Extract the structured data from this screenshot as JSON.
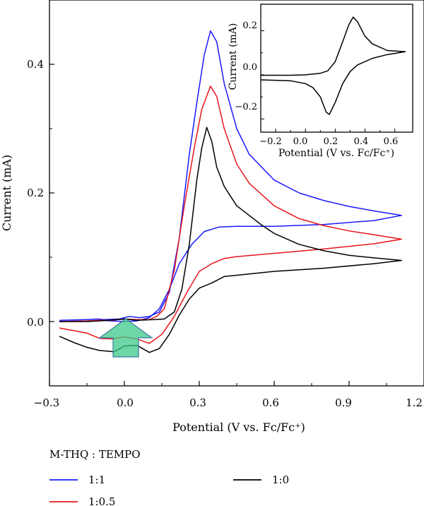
{
  "chart_data": [
    {
      "type": "line",
      "xlabel": "Potential (V vs. Fc/Fc⁺)",
      "ylabel": "Current (mA)",
      "xlim": [
        -0.3,
        1.2
      ],
      "ylim": [
        -0.1,
        0.5
      ],
      "xticks": [
        "−0.3",
        "0.0",
        "0.3",
        "0.6",
        "0.9",
        "1.2"
      ],
      "yticks": [
        "0.0",
        "0.2",
        "0.4"
      ],
      "legend_title": "M-THQ : TEMPO",
      "legend_position": "bottom",
      "series": [
        {
          "name": "1:1",
          "color": "#1a1aff",
          "forward": [
            [
              -0.26,
              0.002
            ],
            [
              -0.15,
              0.003
            ],
            [
              -0.11,
              0.004
            ],
            [
              -0.08,
              0.003
            ],
            [
              -0.02,
              0.004
            ],
            [
              0.02,
              0.008
            ],
            [
              0.06,
              0.006
            ],
            [
              0.1,
              0.008
            ],
            [
              0.14,
              0.015
            ],
            [
              0.18,
              0.045
            ],
            [
              0.22,
              0.13
            ],
            [
              0.26,
              0.26
            ],
            [
              0.29,
              0.34
            ],
            [
              0.32,
              0.415
            ],
            [
              0.345,
              0.452
            ],
            [
              0.37,
              0.435
            ],
            [
              0.4,
              0.37
            ],
            [
              0.45,
              0.3
            ],
            [
              0.5,
              0.26
            ],
            [
              0.6,
              0.22
            ],
            [
              0.7,
              0.2
            ],
            [
              0.8,
              0.188
            ],
            [
              0.9,
              0.179
            ],
            [
              1.0,
              0.172
            ],
            [
              1.11,
              0.165
            ]
          ],
          "reverse": [
            [
              1.11,
              0.165
            ],
            [
              1.0,
              0.157
            ],
            [
              0.8,
              0.151
            ],
            [
              0.6,
              0.148
            ],
            [
              0.45,
              0.148
            ],
            [
              0.38,
              0.147
            ],
            [
              0.32,
              0.14
            ],
            [
              0.27,
              0.12
            ],
            [
              0.22,
              0.09
            ],
            [
              0.18,
              0.05
            ],
            [
              0.14,
              0.02
            ],
            [
              0.1,
              0.006
            ],
            [
              0.05,
              0.001
            ],
            [
              0.0,
              0.0
            ],
            [
              -0.05,
              0.001
            ],
            [
              -0.1,
              0.002
            ],
            [
              -0.15,
              0.001
            ],
            [
              -0.26,
              0.0
            ]
          ]
        },
        {
          "name": "1:0.5",
          "color": "#e8161b",
          "forward": [
            [
              -0.26,
              0.0
            ],
            [
              -0.15,
              0.001
            ],
            [
              -0.1,
              0.002
            ],
            [
              -0.05,
              0.002
            ],
            [
              0.0,
              0.004
            ],
            [
              0.05,
              0.003
            ],
            [
              0.1,
              0.003
            ],
            [
              0.13,
              0.008
            ],
            [
              0.16,
              0.02
            ],
            [
              0.2,
              0.08
            ],
            [
              0.24,
              0.18
            ],
            [
              0.28,
              0.27
            ],
            [
              0.31,
              0.33
            ],
            [
              0.345,
              0.366
            ],
            [
              0.37,
              0.35
            ],
            [
              0.4,
              0.3
            ],
            [
              0.45,
              0.245
            ],
            [
              0.5,
              0.215
            ],
            [
              0.6,
              0.18
            ],
            [
              0.7,
              0.16
            ],
            [
              0.8,
              0.149
            ],
            [
              0.9,
              0.141
            ],
            [
              1.0,
              0.135
            ],
            [
              1.11,
              0.128
            ]
          ],
          "reverse": [
            [
              1.11,
              0.128
            ],
            [
              1.0,
              0.121
            ],
            [
              0.8,
              0.113
            ],
            [
              0.6,
              0.106
            ],
            [
              0.45,
              0.101
            ],
            [
              0.4,
              0.098
            ],
            [
              0.35,
              0.09
            ],
            [
              0.3,
              0.078
            ],
            [
              0.25,
              0.045
            ],
            [
              0.2,
              0.008
            ],
            [
              0.15,
              -0.02
            ],
            [
              0.1,
              -0.034
            ],
            [
              0.05,
              -0.027
            ],
            [
              0.0,
              -0.024
            ],
            [
              -0.05,
              -0.027
            ],
            [
              -0.1,
              -0.026
            ],
            [
              -0.15,
              -0.018
            ],
            [
              -0.26,
              -0.01
            ]
          ]
        },
        {
          "name": "1:0",
          "color": "#000000",
          "forward": [
            [
              -0.26,
              0.0
            ],
            [
              -0.15,
              0.0
            ],
            [
              -0.1,
              0.001
            ],
            [
              0.0,
              0.004
            ],
            [
              0.05,
              0.002
            ],
            [
              0.12,
              0.003
            ],
            [
              0.16,
              0.004
            ],
            [
              0.2,
              0.015
            ],
            [
              0.23,
              0.05
            ],
            [
              0.26,
              0.12
            ],
            [
              0.29,
              0.22
            ],
            [
              0.31,
              0.27
            ],
            [
              0.33,
              0.302
            ],
            [
              0.35,
              0.28
            ],
            [
              0.37,
              0.24
            ],
            [
              0.4,
              0.21
            ],
            [
              0.45,
              0.18
            ],
            [
              0.5,
              0.165
            ],
            [
              0.55,
              0.15
            ],
            [
              0.6,
              0.137
            ],
            [
              0.7,
              0.12
            ],
            [
              0.8,
              0.11
            ],
            [
              0.9,
              0.103
            ],
            [
              1.0,
              0.099
            ],
            [
              1.11,
              0.095
            ]
          ],
          "reverse": [
            [
              1.11,
              0.095
            ],
            [
              1.0,
              0.09
            ],
            [
              0.8,
              0.083
            ],
            [
              0.6,
              0.078
            ],
            [
              0.45,
              0.072
            ],
            [
              0.4,
              0.07
            ],
            [
              0.35,
              0.06
            ],
            [
              0.3,
              0.052
            ],
            [
              0.26,
              0.035
            ],
            [
              0.22,
              0.01
            ],
            [
              0.18,
              -0.02
            ],
            [
              0.14,
              -0.042
            ],
            [
              0.1,
              -0.048
            ],
            [
              0.05,
              -0.037
            ],
            [
              0.0,
              -0.038
            ],
            [
              -0.04,
              -0.047
            ],
            [
              -0.1,
              -0.045
            ],
            [
              -0.15,
              -0.04
            ],
            [
              -0.2,
              -0.033
            ],
            [
              -0.26,
              -0.023
            ]
          ]
        }
      ]
    },
    {
      "type": "line",
      "xlabel": "Potential (V vs. Fc/Fc⁺)",
      "ylabel": "Current (mA)",
      "xlim": [
        -0.3,
        0.72
      ],
      "ylim": [
        -0.26,
        0.32
      ],
      "xticks": [
        "−0.2",
        "0.0",
        "0.2",
        "0.4",
        "0.6"
      ],
      "yticks": [
        "−0.2",
        "0.0",
        "0.2"
      ],
      "series": [
        {
          "color": "#000000",
          "forward": [
            [
              -0.3,
              -0.002
            ],
            [
              -0.1,
              -0.002
            ],
            [
              0.0,
              0.0
            ],
            [
              0.1,
              0.007
            ],
            [
              0.15,
              0.018
            ],
            [
              0.2,
              0.06
            ],
            [
              0.25,
              0.15
            ],
            [
              0.29,
              0.225
            ],
            [
              0.32,
              0.262
            ],
            [
              0.35,
              0.24
            ],
            [
              0.4,
              0.175
            ],
            [
              0.45,
              0.14
            ],
            [
              0.55,
              0.11
            ],
            [
              0.67,
              0.105
            ]
          ],
          "reverse": [
            [
              0.67,
              0.105
            ],
            [
              0.55,
              0.092
            ],
            [
              0.45,
              0.075
            ],
            [
              0.35,
              0.045
            ],
            [
              0.3,
              0.015
            ],
            [
              0.25,
              -0.04
            ],
            [
              0.2,
              -0.125
            ],
            [
              0.16,
              -0.18
            ],
            [
              0.14,
              -0.17
            ],
            [
              0.1,
              -0.1
            ],
            [
              0.05,
              -0.058
            ],
            [
              0.0,
              -0.04
            ],
            [
              -0.1,
              -0.027
            ],
            [
              -0.3,
              -0.023
            ]
          ]
        }
      ]
    }
  ]
}
